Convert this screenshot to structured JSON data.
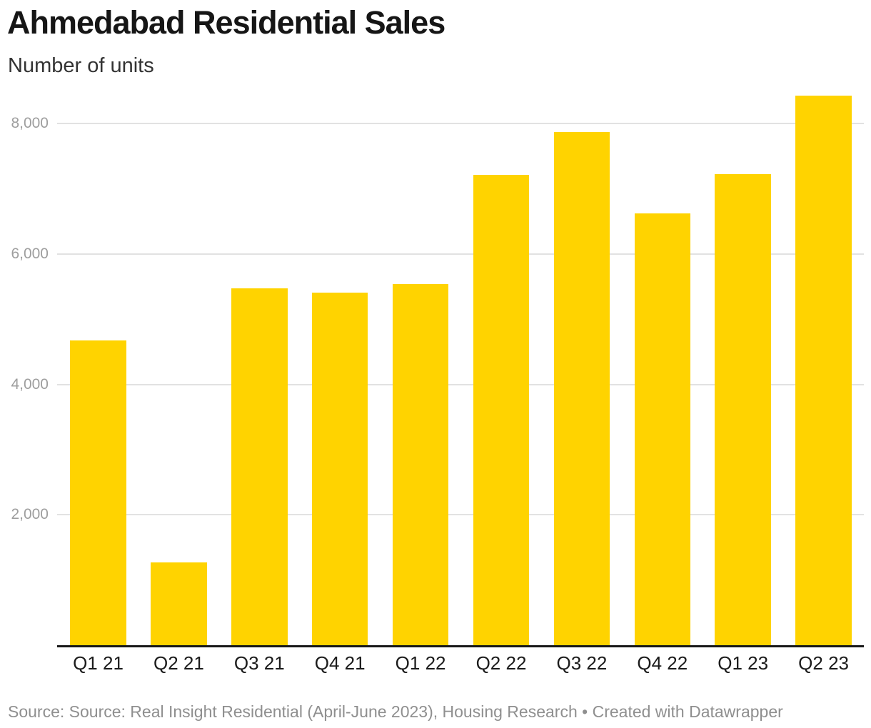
{
  "header": {
    "title": "Ahmedabad Residential Sales",
    "subtitle": "Number of units"
  },
  "chart_data": {
    "type": "bar",
    "title": "Ahmedabad Residential Sales",
    "subtitle": "Number of units",
    "ylabel": "Number of units",
    "xlabel": "",
    "categories": [
      "Q1 21",
      "Q2 21",
      "Q3 21",
      "Q4 21",
      "Q1 22",
      "Q2 22",
      "Q3 22",
      "Q4 22",
      "Q1 23",
      "Q2 23"
    ],
    "values": [
      4670,
      1270,
      5470,
      5410,
      5540,
      7220,
      7870,
      6620,
      7230,
      8430
    ],
    "ylim": [
      0,
      8600
    ],
    "yticks": [
      2000,
      4000,
      6000,
      8000
    ],
    "ytick_labels": [
      "2,000",
      "4,000",
      "6,000",
      "8,000"
    ],
    "grid": true,
    "legend": false,
    "bar_color": "#FFD300"
  },
  "footer": {
    "source_label": "Source:",
    "source_text": "Source: Real Insight Residential (April-June 2023), Housing Research",
    "separator": "•",
    "attribution": "Created with Datawrapper"
  },
  "colors": {
    "bar": "#FFD300",
    "gridline": "#e2e2e2",
    "baseline": "#181818",
    "y_tick_label": "#9e9e9e",
    "x_tick_label": "#1b1b1b",
    "title": "#161616",
    "subtitle": "#333333",
    "footer_text": "#8f8f8f"
  }
}
